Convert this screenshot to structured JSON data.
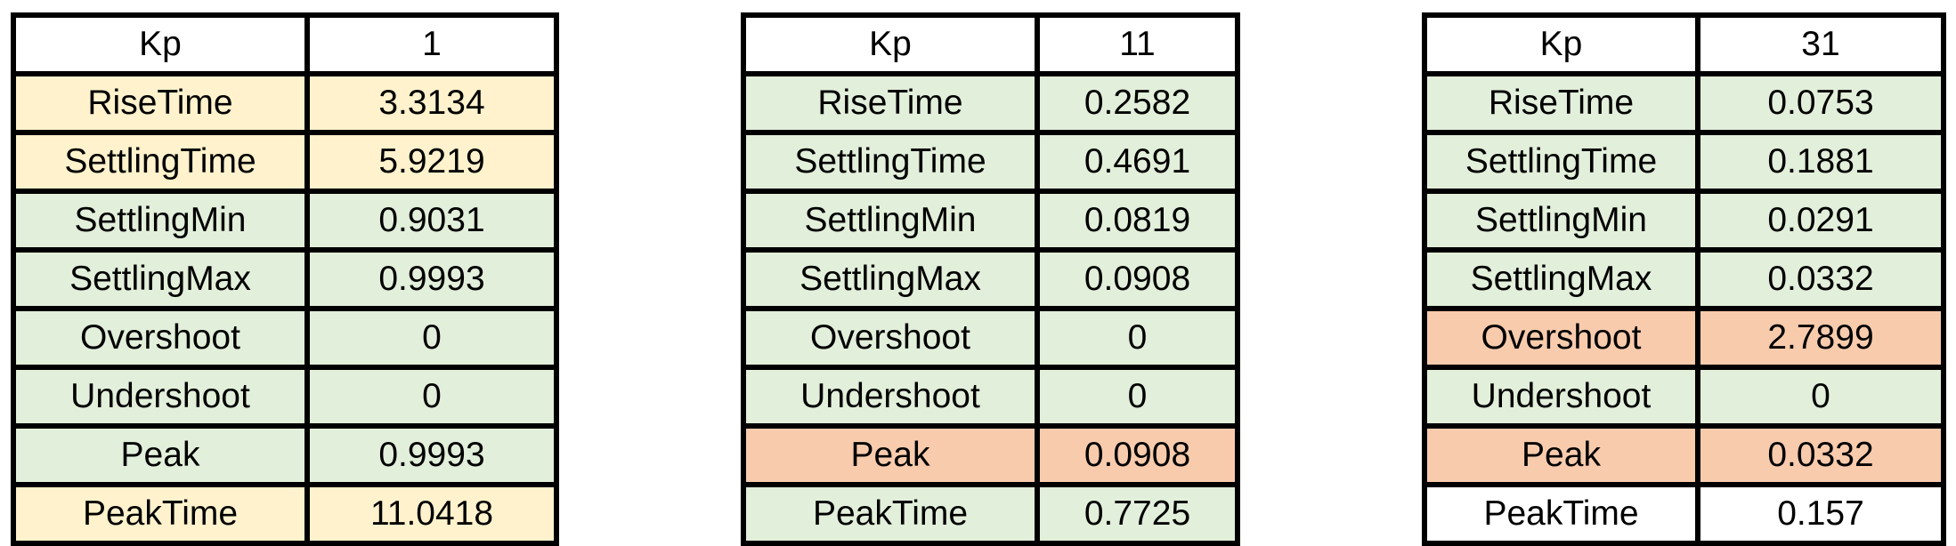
{
  "colors": {
    "white": "#ffffff",
    "green": "#e2efda",
    "yellow": "#fff2cc",
    "orange": "#f8cbad",
    "border": "#000000"
  },
  "tables": [
    {
      "rows": [
        {
          "label": "Kp",
          "value": "1",
          "fill": "white"
        },
        {
          "label": "RiseTime",
          "value": "3.3134",
          "fill": "yellow"
        },
        {
          "label": "SettlingTime",
          "value": "5.9219",
          "fill": "yellow"
        },
        {
          "label": "SettlingMin",
          "value": "0.9031",
          "fill": "green"
        },
        {
          "label": "SettlingMax",
          "value": "0.9993",
          "fill": "green"
        },
        {
          "label": "Overshoot",
          "value": "0",
          "fill": "green"
        },
        {
          "label": "Undershoot",
          "value": "0",
          "fill": "green"
        },
        {
          "label": "Peak",
          "value": "0.9993",
          "fill": "green"
        },
        {
          "label": "PeakTime",
          "value": "11.0418",
          "fill": "yellow"
        }
      ]
    },
    {
      "rows": [
        {
          "label": "Kp",
          "value": "11",
          "fill": "white"
        },
        {
          "label": "RiseTime",
          "value": "0.2582",
          "fill": "green"
        },
        {
          "label": "SettlingTime",
          "value": "0.4691",
          "fill": "green"
        },
        {
          "label": "SettlingMin",
          "value": "0.0819",
          "fill": "green"
        },
        {
          "label": "SettlingMax",
          "value": "0.0908",
          "fill": "green"
        },
        {
          "label": "Overshoot",
          "value": "0",
          "fill": "green"
        },
        {
          "label": "Undershoot",
          "value": "0",
          "fill": "green"
        },
        {
          "label": "Peak",
          "value": "0.0908",
          "fill": "orange"
        },
        {
          "label": "PeakTime",
          "value": "0.7725",
          "fill": "green"
        }
      ]
    },
    {
      "rows": [
        {
          "label": "Kp",
          "value": "31",
          "fill": "white"
        },
        {
          "label": "RiseTime",
          "value": "0.0753",
          "fill": "green"
        },
        {
          "label": "SettlingTime",
          "value": "0.1881",
          "fill": "green"
        },
        {
          "label": "SettlingMin",
          "value": "0.0291",
          "fill": "green"
        },
        {
          "label": "SettlingMax",
          "value": "0.0332",
          "fill": "green"
        },
        {
          "label": "Overshoot",
          "value": "2.7899",
          "fill": "orange"
        },
        {
          "label": "Undershoot",
          "value": "0",
          "fill": "green"
        },
        {
          "label": "Peak",
          "value": "0.0332",
          "fill": "orange"
        },
        {
          "label": "PeakTime",
          "value": "0.157",
          "fill": "white"
        }
      ]
    }
  ]
}
